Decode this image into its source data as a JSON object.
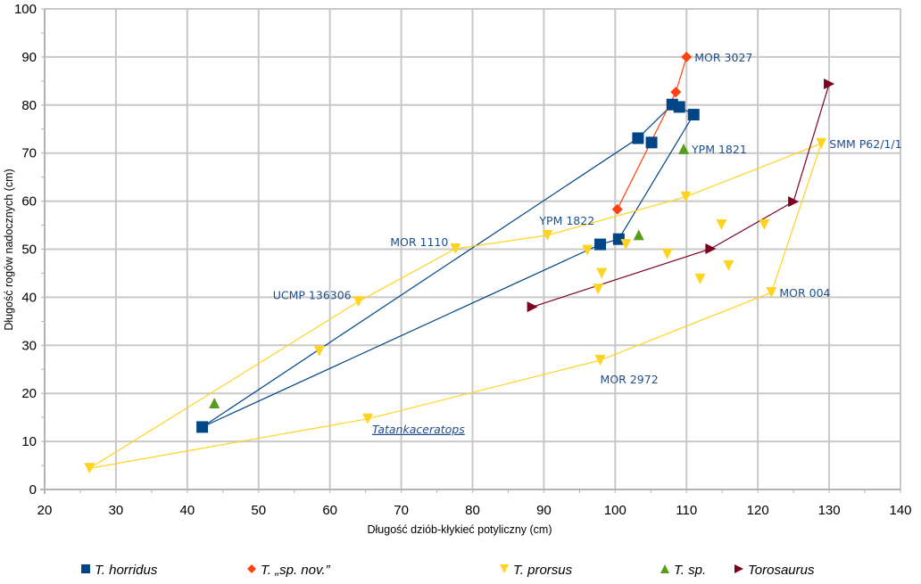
{
  "chart_data": {
    "type": "scatter",
    "title": "",
    "xlabel": "Długość dziób-kłykieć potyliczny (cm)",
    "ylabel": "Długość rogów nadocznych (cm)",
    "xlim": [
      20,
      140
    ],
    "ylim": [
      0,
      100
    ],
    "xticks": [
      20,
      30,
      40,
      50,
      60,
      70,
      80,
      90,
      100,
      110,
      120,
      130,
      140
    ],
    "yticks": [
      0,
      10,
      20,
      30,
      40,
      50,
      60,
      70,
      80,
      90,
      100
    ],
    "grid": true,
    "legend_position": "bottom",
    "series": [
      {
        "name": "T. horridus",
        "marker": "square",
        "color": "#004586",
        "points": [
          [
            42.1,
            13.0
          ],
          [
            103.2,
            73.1
          ],
          [
            105.1,
            72.2
          ],
          [
            108.0,
            80.1
          ],
          [
            109.0,
            79.6
          ],
          [
            111.0,
            78.0
          ],
          [
            100.5,
            52.1
          ],
          [
            97.9,
            51.0
          ]
        ],
        "lines": [
          [
            [
              42.1,
              13.0
            ],
            [
              103.2,
              73.1
            ],
            [
              108.0,
              80.1
            ],
            [
              109.0,
              79.6
            ],
            [
              111.0,
              78.0
            ],
            [
              100.5,
              52.1
            ],
            [
              97.9,
              51.0
            ],
            [
              42.1,
              13.0
            ]
          ]
        ]
      },
      {
        "name": "T. „sp. nov.”",
        "marker": "diamond",
        "color": "#ff420e",
        "points": [
          [
            100.3,
            58.3
          ],
          [
            108.5,
            82.7
          ],
          [
            110.0,
            90.0
          ]
        ],
        "lines": [
          [
            [
              100.3,
              58.3
            ],
            [
              108.5,
              82.7
            ],
            [
              110.0,
              90.0
            ]
          ]
        ]
      },
      {
        "name": "T. prorsus",
        "marker": "triangle-down",
        "color": "#ffd320",
        "points": [
          [
            26.3,
            4.4
          ],
          [
            65.3,
            14.7
          ],
          [
            58.5,
            28.8
          ],
          [
            64.0,
            39.1
          ],
          [
            77.6,
            50.1
          ],
          [
            90.5,
            52.9
          ],
          [
            109.9,
            60.9
          ],
          [
            128.9,
            72.0
          ],
          [
            121.9,
            41.0
          ],
          [
            97.9,
            26.9
          ],
          [
            96.1,
            49.8
          ],
          [
            98.1,
            45.0
          ],
          [
            97.6,
            41.7
          ],
          [
            101.5,
            51.0
          ],
          [
            107.3,
            49.0
          ],
          [
            114.9,
            55.1
          ],
          [
            115.9,
            46.6
          ],
          [
            111.9,
            43.8
          ],
          [
            120.9,
            55.1
          ]
        ],
        "lines": [
          [
            [
              26.3,
              4.4
            ],
            [
              64.0,
              39.1
            ],
            [
              77.6,
              50.1
            ],
            [
              90.5,
              52.9
            ],
            [
              109.9,
              60.9
            ],
            [
              128.9,
              72.0
            ],
            [
              121.9,
              41.0
            ],
            [
              97.9,
              26.9
            ],
            [
              65.3,
              14.7
            ],
            [
              26.3,
              4.4
            ]
          ]
        ]
      },
      {
        "name": "T. sp.",
        "marker": "triangle-up",
        "color": "#579d1c",
        "points": [
          [
            43.8,
            18.0
          ],
          [
            103.3,
            53.0
          ],
          [
            109.6,
            70.9
          ]
        ],
        "lines": []
      },
      {
        "name": "Torosaurus",
        "marker": "triangle-right",
        "color": "#7e0021",
        "points": [
          [
            88.4,
            38.0
          ],
          [
            113.4,
            50.1
          ],
          [
            125.0,
            59.9
          ],
          [
            130.0,
            84.4
          ]
        ],
        "lines": [
          [
            [
              88.4,
              38.0
            ],
            [
              113.4,
              50.1
            ],
            [
              125.0,
              59.9
            ],
            [
              130.0,
              84.4
            ]
          ]
        ]
      }
    ],
    "annotations": [
      {
        "text": "MOR 3027",
        "x": 110.0,
        "y": 90.0,
        "anchor": "right",
        "underline": false,
        "italic": false
      },
      {
        "text": "YPM 1821",
        "x": 109.6,
        "y": 70.9,
        "anchor": "right",
        "underline": false,
        "italic": false
      },
      {
        "text": "SMM P62/1/1",
        "x": 128.9,
        "y": 72.0,
        "anchor": "right",
        "underline": false,
        "italic": false
      },
      {
        "text": "YPM 1822",
        "x": 90.5,
        "y": 52.9,
        "anchor": "above-right",
        "underline": false,
        "italic": false
      },
      {
        "text": "MOR 1110",
        "x": 77.6,
        "y": 50.1,
        "anchor": "left",
        "underline": false,
        "italic": false
      },
      {
        "text": "UCMP 136306",
        "x": 64.0,
        "y": 39.1,
        "anchor": "left",
        "underline": false,
        "italic": false
      },
      {
        "text": "MOR 004",
        "x": 121.9,
        "y": 41.0,
        "anchor": "right",
        "underline": false,
        "italic": false
      },
      {
        "text": "MOR 2972",
        "x": 97.9,
        "y": 26.9,
        "anchor": "below",
        "underline": false,
        "italic": false
      },
      {
        "text": "Tatankaceratops",
        "x": 65.3,
        "y": 14.7,
        "anchor": "below-right",
        "underline": true,
        "italic": true
      }
    ]
  }
}
